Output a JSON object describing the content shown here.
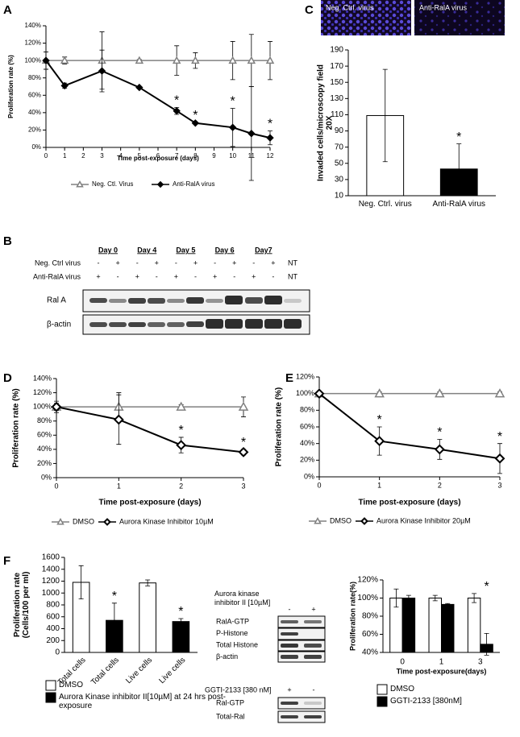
{
  "panels": {
    "labels": [
      "A",
      "B",
      "C",
      "D",
      "E",
      "F"
    ]
  },
  "images_c": {
    "labels": [
      "Neg. Ctrl. virus",
      "Anti-RalA virus"
    ]
  },
  "blot_b": {
    "days": [
      "Day 0",
      "Day 4",
      "Day 5",
      "Day 6",
      "Day7"
    ],
    "rows": [
      {
        "label": "Neg. Ctrl virus",
        "signs": [
          "-",
          "+",
          "-",
          "+",
          "-",
          "+",
          "-",
          "+",
          "-",
          "+",
          "NT"
        ]
      },
      {
        "label": "Anti-RalA  virus",
        "signs": [
          "+",
          "-",
          "+",
          "-",
          "+",
          "-",
          "+",
          "-",
          "+",
          "-",
          "NT"
        ]
      }
    ],
    "bands": [
      "Ral A",
      "β-actin"
    ]
  },
  "blot_f": {
    "aurora": {
      "label": "Aurora kinase inhibitor II [10µM]",
      "signs": [
        "-",
        "+"
      ],
      "rows": [
        "RalA-GTP",
        "P-Histone",
        "Total Histone",
        "β-actin"
      ]
    },
    "ggti": {
      "label": "GGTI-2133 [380 nM]",
      "signs": [
        "+",
        "-"
      ],
      "rows": [
        "Ral-GTP",
        "Total-Ral"
      ]
    }
  },
  "chart_data": [
    {
      "type": "line",
      "x": [
        0,
        1,
        3,
        5,
        7,
        8,
        10,
        11,
        12
      ],
      "xlim": [
        0,
        12
      ],
      "xticks": [
        0,
        1,
        2,
        3,
        4,
        5,
        6,
        7,
        8,
        9,
        10,
        11,
        12
      ],
      "ylim": [
        0,
        140
      ],
      "yticks": [
        {
          "value": 0,
          "label": "0%"
        },
        {
          "value": 20,
          "label": "20%"
        },
        {
          "value": 40,
          "label": "40%"
        },
        {
          "value": 60,
          "label": "60%"
        },
        {
          "value": 80,
          "label": "80%"
        },
        {
          "value": 100,
          "label": "100%"
        },
        {
          "value": 120,
          "label": "120%"
        },
        {
          "value": 140,
          "label": "140%"
        }
      ],
      "xlabel": "Time post-exposure (days)",
      "ylabel": "Proliferation rate (%)",
      "legend": "bottom",
      "series": [
        {
          "name": "Neg. Ctl. Virus",
          "color": "#808080",
          "marker": "triangle",
          "values": [
            100,
            100,
            100,
            100,
            100,
            100,
            100,
            100,
            100
          ],
          "errors": [
            10,
            4,
            33,
            1,
            17,
            9,
            22,
            30,
            22
          ]
        },
        {
          "name": "Anti-RalA virus",
          "color": "#000000",
          "marker": "diamond",
          "values": [
            100,
            71,
            88,
            69,
            42,
            28,
            23,
            16,
            11
          ],
          "errors": [
            10,
            3,
            24,
            1,
            4,
            1,
            22,
            54,
            8
          ]
        }
      ],
      "annotations": [
        {
          "text": "*",
          "x": 7
        },
        {
          "text": "*",
          "x": 8
        },
        {
          "text": "*",
          "x": 10
        },
        {
          "text": "*",
          "x": 12
        }
      ]
    },
    {
      "type": "bar",
      "categories": [
        "Neg. Ctrl. virus",
        "Anti-RalA virus"
      ],
      "values": [
        109,
        43
      ],
      "errors": [
        57,
        31
      ],
      "colors": [
        "#ffffff",
        "#000000"
      ],
      "ylim": [
        10,
        190
      ],
      "yticks": [
        10,
        30,
        50,
        70,
        90,
        110,
        130,
        150,
        170,
        190
      ],
      "ylabel": "Invaded cells/microscopy field 20X",
      "annotations": [
        {
          "text": "*",
          "x": 1
        }
      ]
    },
    {
      "type": "line",
      "x": [
        0,
        1,
        2,
        3
      ],
      "xlim": [
        0,
        3
      ],
      "xticks": [
        0,
        1,
        2,
        3
      ],
      "ylim": [
        0,
        140
      ],
      "yticks": [
        {
          "value": 0,
          "label": "0%"
        },
        {
          "value": 20,
          "label": "20%"
        },
        {
          "value": 40,
          "label": "40%"
        },
        {
          "value": 60,
          "label": "60%"
        },
        {
          "value": 80,
          "label": "80%"
        },
        {
          "value": 100,
          "label": "100%"
        },
        {
          "value": 120,
          "label": "120%"
        },
        {
          "value": 140,
          "label": "140%"
        }
      ],
      "xlabel": "Time post-exposure (days)",
      "ylabel": "Proliferation rate (%)",
      "legend": "bottom",
      "series": [
        {
          "name": "DMSO",
          "color": "#808080",
          "marker": "triangle",
          "values": [
            100,
            100,
            100,
            100
          ],
          "errors": [
            8,
            20,
            3,
            14
          ]
        },
        {
          "name": "Aurora Kinase Inhibitor 10µM",
          "color": "#000000",
          "marker": "diamond-open",
          "values": [
            100,
            82,
            46,
            36
          ],
          "errors": [
            5,
            35,
            11,
            4
          ]
        }
      ],
      "annotations": [
        {
          "text": "*",
          "x": 2
        },
        {
          "text": "*",
          "x": 3
        }
      ]
    },
    {
      "type": "line",
      "x": [
        0,
        1,
        2,
        3
      ],
      "xlim": [
        0,
        3
      ],
      "xticks": [
        0,
        1,
        2,
        3
      ],
      "ylim": [
        0,
        120
      ],
      "yticks": [
        {
          "value": 0,
          "label": "0%"
        },
        {
          "value": 20,
          "label": "20%"
        },
        {
          "value": 40,
          "label": "40%"
        },
        {
          "value": 60,
          "label": "60%"
        },
        {
          "value": 80,
          "label": "80%"
        },
        {
          "value": 100,
          "label": "100%"
        },
        {
          "value": 120,
          "label": "120%"
        }
      ],
      "xlabel": "Time post-exposure (days)",
      "ylabel": "Proliferation rate (%)",
      "legend": "bottom",
      "series": [
        {
          "name": "DMSO",
          "color": "#808080",
          "marker": "triangle",
          "values": [
            100,
            100,
            100,
            100
          ],
          "errors": [
            2,
            2,
            2,
            2
          ]
        },
        {
          "name": "Aurora Kinase Inhibitor 20µM",
          "color": "#000000",
          "marker": "diamond-open",
          "values": [
            100,
            43,
            33,
            22
          ],
          "errors": [
            3,
            17,
            12,
            18
          ]
        }
      ],
      "annotations": [
        {
          "text": "*",
          "x": 1
        },
        {
          "text": "*",
          "x": 2
        },
        {
          "text": "*",
          "x": 3
        }
      ]
    },
    {
      "type": "bar",
      "categories": [
        "Total cells",
        "Total cells",
        "Live cells",
        "Live cells"
      ],
      "ylim": [
        0,
        1600
      ],
      "yticks": [
        0,
        200,
        400,
        600,
        800,
        1000,
        1200,
        1400,
        1600
      ],
      "ylabel": "Proliferation rate (Cells/100 per ml)",
      "legend": "bottom",
      "series": [
        {
          "name": "DMSO",
          "color": "#ffffff",
          "values": [
            1180,
            null,
            1170,
            null
          ],
          "errors": [
            280,
            null,
            50,
            null
          ]
        },
        {
          "name": "Aurora Kinase inhibitor II[10µM] at 24 hrs post-exposure",
          "color": "#000000",
          "values": [
            null,
            540,
            null,
            520
          ],
          "errors": [
            null,
            290,
            null,
            50
          ]
        }
      ],
      "annotations": [
        {
          "text": "*",
          "x": 1
        },
        {
          "text": "*",
          "x": 3
        }
      ]
    },
    {
      "type": "bar",
      "categories": [
        "0",
        "1",
        "3"
      ],
      "ylim": [
        40,
        120
      ],
      "yticks": [
        {
          "value": 40,
          "label": "40%"
        },
        {
          "value": 60,
          "label": "60%"
        },
        {
          "value": 80,
          "label": "80%"
        },
        {
          "value": 100,
          "label": "100%"
        },
        {
          "value": 120,
          "label": "120%"
        }
      ],
      "xlabel": "Time post-exposure(days)",
      "ylabel": "Proliferation rate(%)",
      "legend": "bottom",
      "series": [
        {
          "name": "DMSO",
          "color": "#ffffff",
          "values": [
            100,
            100,
            100
          ],
          "errors": [
            10,
            3,
            5
          ]
        },
        {
          "name": "GGTI-2133 [380nM]",
          "color": "#000000",
          "values": [
            100,
            93,
            49
          ],
          "errors": [
            3,
            1,
            12
          ]
        }
      ],
      "annotations": [
        {
          "text": "*",
          "x": 2
        }
      ]
    }
  ]
}
